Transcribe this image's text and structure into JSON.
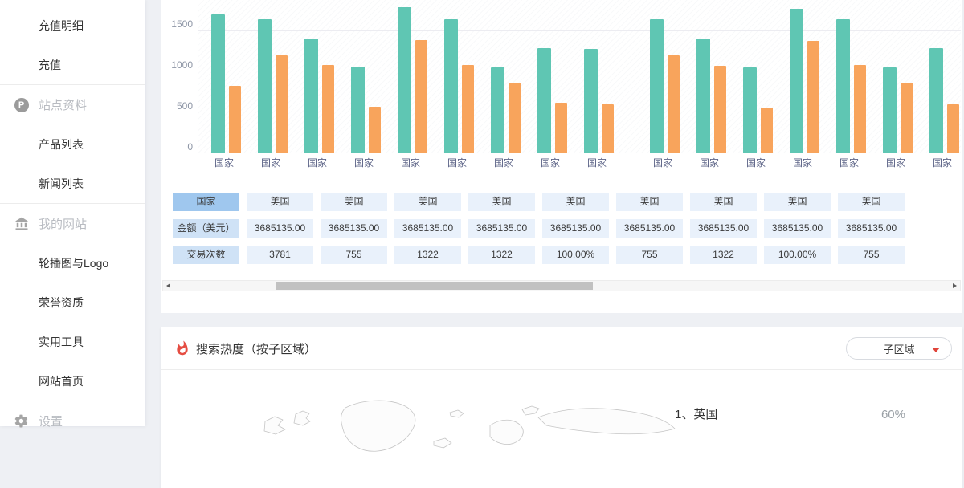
{
  "sidebar": {
    "items": [
      {
        "type": "link",
        "id": "recharge-details",
        "label": "充值明细"
      },
      {
        "type": "link",
        "id": "recharge",
        "label": "充值"
      },
      {
        "type": "divider"
      },
      {
        "type": "section",
        "id": "site-info",
        "label": "站点资料",
        "icon": "p-circle-icon"
      },
      {
        "type": "link",
        "id": "product-list",
        "label": "产品列表"
      },
      {
        "type": "link",
        "id": "news-list",
        "label": "新闻列表"
      },
      {
        "type": "divider"
      },
      {
        "type": "section",
        "id": "my-website",
        "label": "我的网站",
        "icon": "bank-icon"
      },
      {
        "type": "link",
        "id": "banner-logo",
        "label": "轮播图与Logo"
      },
      {
        "type": "link",
        "id": "honors",
        "label": "荣誉资质"
      },
      {
        "type": "link",
        "id": "tools",
        "label": "实用工具"
      },
      {
        "type": "link",
        "id": "homepage",
        "label": "网站首页"
      },
      {
        "type": "divider"
      },
      {
        "type": "section",
        "id": "settings",
        "label": "设置",
        "icon": "gear-icon"
      }
    ]
  },
  "chart_data": {
    "type": "bar",
    "title": "",
    "categories": [
      "国家",
      "国家",
      "国家",
      "国家",
      "国家",
      "国家",
      "国家",
      "国家",
      "国家",
      "国家",
      "国家",
      "国家",
      "国家",
      "国家",
      "国家",
      "国家"
    ],
    "series": [
      {
        "name": "series-teal",
        "color": "#5fc6b3",
        "values": [
          1690,
          1625,
          1390,
          1045,
          1770,
          1625,
          1040,
          1270,
          1260,
          1625,
          1390,
          1040,
          1755,
          1625,
          1040,
          1270
        ]
      },
      {
        "name": "series-orange",
        "color": "#f8a45c",
        "values": [
          815,
          1185,
          1070,
          560,
          1370,
          1070,
          855,
          610,
          590,
          1185,
          1060,
          550,
          1360,
          1070,
          855,
          590
        ]
      }
    ],
    "yticks": [
      0,
      500,
      1000,
      1500
    ],
    "ylim": [
      0,
      1862
    ],
    "grid": true,
    "legend_visible": false
  },
  "table": {
    "rows": [
      [
        "国家",
        "美国",
        "美国",
        "美国",
        "美国",
        "美国",
        "美国",
        "美国",
        "美国",
        "美国"
      ],
      [
        "金额（美元）",
        "3685135.00",
        "3685135.00",
        "3685135.00",
        "3685135.00",
        "3685135.00",
        "3685135.00",
        "3685135.00",
        "3685135.00",
        "3685135.00"
      ],
      [
        "交易次数",
        "3781",
        "755",
        "1322",
        "1322",
        "100.00%",
        "755",
        "1322",
        "100.00%",
        "755"
      ]
    ]
  },
  "heat_section": {
    "title": "搜索热度（按子区域）",
    "dropdown": {
      "label": "子区域"
    },
    "ranking": [
      {
        "label": "1、英国",
        "value": "60%"
      }
    ]
  },
  "colors": {
    "teal": "#5fc6b3",
    "orange": "#f8a45c",
    "flame_red": "#e54d42",
    "table_header_blue": "#9fc7ee",
    "table_col_blue": "#cfe2f6",
    "table_cell_blue": "#e9f1fb"
  }
}
